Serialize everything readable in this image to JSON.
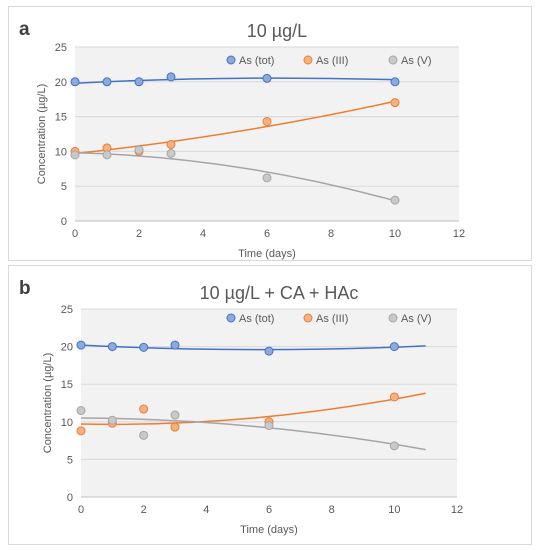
{
  "chart_data": [
    {
      "panel_label": "a",
      "type": "scatter",
      "title": "10 µg/L",
      "xlabel": "Time (days)",
      "ylabel": "Concentration (µg/L)",
      "xlim": [
        0,
        12
      ],
      "ylim": [
        0,
        25
      ],
      "xticks": [
        0,
        2,
        4,
        6,
        8,
        10,
        12
      ],
      "yticks": [
        0,
        5,
        10,
        15,
        20,
        25
      ],
      "grid": "horizontal",
      "legend_position": "top-right",
      "series": [
        {
          "name": "As (tot)",
          "color": "#4472C4",
          "marker_fill": "#8EA9DB",
          "x": [
            0,
            1,
            2,
            3,
            6,
            10
          ],
          "y": [
            20.0,
            20.0,
            20.0,
            20.7,
            20.5,
            20.0
          ],
          "trendline": "polynomial",
          "trend_x": [
            0,
            10
          ],
          "trend_y": [
            19.8,
            20.5,
            20.3
          ]
        },
        {
          "name": "As (III)",
          "color": "#ED7D31",
          "marker_fill": "#F4B183",
          "x": [
            0,
            1,
            2,
            3,
            6,
            10
          ],
          "y": [
            10.0,
            10.5,
            10.0,
            11.0,
            14.3,
            17.0
          ],
          "trendline": "polynomial",
          "trend_x": [
            0,
            10
          ],
          "trend_y": [
            9.7,
            12.8,
            17.2
          ]
        },
        {
          "name": "As (V)",
          "color": "#A5A5A5",
          "marker_fill": "#C9C9C9",
          "x": [
            0,
            1,
            2,
            3,
            6,
            10
          ],
          "y": [
            9.5,
            9.5,
            10.2,
            9.7,
            6.2,
            3.0
          ],
          "trendline": "polynomial",
          "trend_x": [
            0,
            10
          ],
          "trend_y": [
            9.8,
            7.8,
            2.9
          ]
        }
      ]
    },
    {
      "panel_label": "b",
      "type": "scatter",
      "title": "10 µg/L + CA + HAc",
      "xlabel": "Time (days)",
      "ylabel": "Concentration (µg/L)",
      "xlim": [
        0,
        12
      ],
      "ylim": [
        0,
        25
      ],
      "xticks": [
        0,
        2,
        4,
        6,
        8,
        10,
        12
      ],
      "yticks": [
        0,
        5,
        10,
        15,
        20,
        25
      ],
      "grid": "horizontal",
      "legend_position": "top-right",
      "series": [
        {
          "name": "As (tot)",
          "color": "#4472C4",
          "marker_fill": "#8EA9DB",
          "x": [
            0,
            1,
            2,
            3,
            6,
            10
          ],
          "y": [
            20.2,
            20.0,
            19.9,
            20.2,
            19.4,
            20.0
          ],
          "trendline": "polynomial",
          "trend_x": [
            0,
            11
          ],
          "trend_y": [
            20.2,
            19.6,
            20.1
          ]
        },
        {
          "name": "As (III)",
          "color": "#ED7D31",
          "marker_fill": "#F4B183",
          "x": [
            0,
            1,
            2,
            3,
            6,
            10
          ],
          "y": [
            8.8,
            9.8,
            11.7,
            9.3,
            10.0,
            13.3
          ],
          "trendline": "polynomial",
          "trend_x": [
            0,
            11
          ],
          "trend_y": [
            9.7,
            10.5,
            13.8
          ]
        },
        {
          "name": "As (V)",
          "color": "#A5A5A5",
          "marker_fill": "#C9C9C9",
          "x": [
            0,
            1,
            2,
            3,
            6,
            10
          ],
          "y": [
            11.5,
            10.2,
            8.2,
            10.9,
            9.5,
            6.8
          ],
          "trendline": "polynomial",
          "trend_x": [
            0,
            11
          ],
          "trend_y": [
            10.5,
            9.4,
            6.3
          ]
        }
      ]
    }
  ]
}
